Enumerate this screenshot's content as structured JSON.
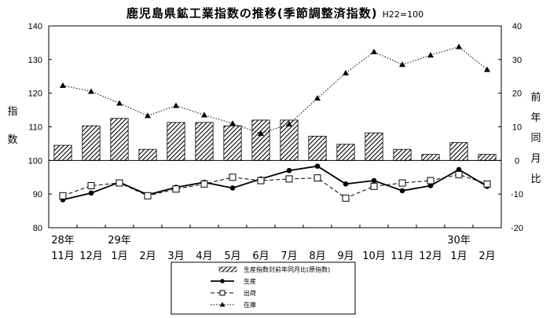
{
  "chart_data": {
    "type": "bar",
    "title": "鹿児島県鉱工業指数の推移(季節調整済指数)",
    "base_note": "H22=100",
    "ylabel_left": "指数",
    "ylabel_right": "前年同月比",
    "ylim_left": [
      80,
      140
    ],
    "yticks_left": [
      "140",
      "130",
      "120",
      "110",
      "100",
      "90",
      "80"
    ],
    "ylim_right": [
      -20,
      40
    ],
    "yticks_right": [
      "40",
      "30",
      "20",
      "10",
      "0",
      "-10",
      "-20"
    ],
    "categories": [
      "11月",
      "12月",
      "1月",
      "2月",
      "3月",
      "4月",
      "5月",
      "6月",
      "7月",
      "8月",
      "9月",
      "10月",
      "11月",
      "12月",
      "1月",
      "2月"
    ],
    "year_labels": [
      {
        "index": 0,
        "label": "28年"
      },
      {
        "index": 2,
        "label": "29年"
      },
      {
        "index": 14,
        "label": "30年"
      }
    ],
    "series": [
      {
        "name": "生産指数対前年同月比(原指数)",
        "axis": "right",
        "kind": "bar",
        "values": [
          4.5,
          10.3,
          12.5,
          3.3,
          11.3,
          11.3,
          10.3,
          12.0,
          12.0,
          7.2,
          4.8,
          8.2,
          3.3,
          1.8,
          5.3,
          1.8
        ]
      },
      {
        "name": "生産",
        "axis": "left",
        "kind": "line-solid-dot",
        "values": [
          88.3,
          90.3,
          93.5,
          89.8,
          92.0,
          93.5,
          91.8,
          94.5,
          97.0,
          98.3,
          93.0,
          94.0,
          91.0,
          92.5,
          97.3,
          92.3
        ]
      },
      {
        "name": "出荷",
        "axis": "left",
        "kind": "line-dash-square",
        "values": [
          89.5,
          92.5,
          93.3,
          89.5,
          91.5,
          93.0,
          95.0,
          94.0,
          94.5,
          94.8,
          88.8,
          92.3,
          93.3,
          94.0,
          95.8,
          93.0
        ]
      },
      {
        "name": "在庫",
        "axis": "right",
        "kind": "line-dot-triangle",
        "values": [
          22.3,
          20.5,
          17.0,
          13.3,
          16.3,
          13.5,
          11.0,
          8.0,
          10.8,
          18.5,
          26.0,
          32.3,
          28.5,
          31.3,
          33.8,
          27.0
        ]
      }
    ],
    "grid": false,
    "legend_position": "bottom-center"
  },
  "colors": {
    "background": "#ffffff",
    "axis": "#000000",
    "bar_hatch": "#000000"
  }
}
